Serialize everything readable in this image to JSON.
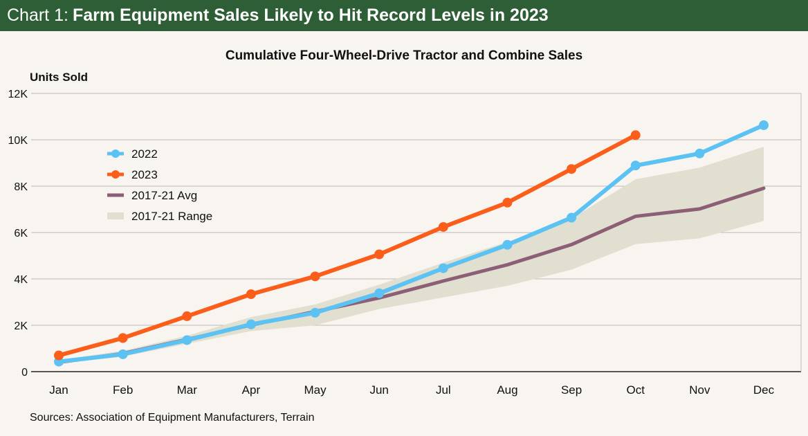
{
  "header": {
    "prefix": "Chart 1:",
    "title": "Farm Equipment Sales Likely to Hit Record Levels in 2023"
  },
  "footer": {
    "source": "Sources: Association of Equipment Manufacturers, Terrain"
  },
  "chart_data": {
    "type": "line",
    "title": "Cumulative Four-Wheel-Drive Tractor and Combine Sales",
    "ylabel": "Units Sold",
    "xlabel": "",
    "ylim": [
      0,
      12000
    ],
    "yticks": [
      0,
      2000,
      4000,
      6000,
      8000,
      10000,
      12000
    ],
    "ytick_labels": [
      "0",
      "2K",
      "4K",
      "6K",
      "8K",
      "10K",
      "12K"
    ],
    "categories": [
      "Jan",
      "Feb",
      "Mar",
      "Apr",
      "May",
      "Jun",
      "Jul",
      "Aug",
      "Sep",
      "Oct",
      "Nov",
      "Dec"
    ],
    "grid": true,
    "legend_position": "upper-left",
    "series": [
      {
        "name": "2022",
        "color": "#5bc2f3",
        "markers": true,
        "values": [
          430,
          750,
          1360,
          2040,
          2540,
          3380,
          4460,
          5470,
          6640,
          8890,
          9410,
          10630
        ]
      },
      {
        "name": "2023",
        "color": "#fb5e1b",
        "markers": true,
        "values": [
          700,
          1450,
          2390,
          3340,
          4110,
          5060,
          6240,
          7290,
          8740,
          10200,
          null,
          null
        ]
      },
      {
        "name": "2017-21 Avg",
        "color": "#8c5f76",
        "markers": false,
        "values": [
          400,
          780,
          1390,
          2010,
          2590,
          3180,
          3910,
          4610,
          5480,
          6700,
          7020,
          7910
        ]
      }
    ],
    "range": {
      "name": "2017-21 Range",
      "color": "#e1dfcf",
      "low": [
        350,
        650,
        1200,
        1750,
        2000,
        2700,
        3200,
        3700,
        4400,
        5500,
        5750,
        6500
      ],
      "high": [
        500,
        900,
        1550,
        2350,
        2900,
        3750,
        4700,
        5600,
        6600,
        8300,
        8800,
        9700
      ]
    }
  }
}
